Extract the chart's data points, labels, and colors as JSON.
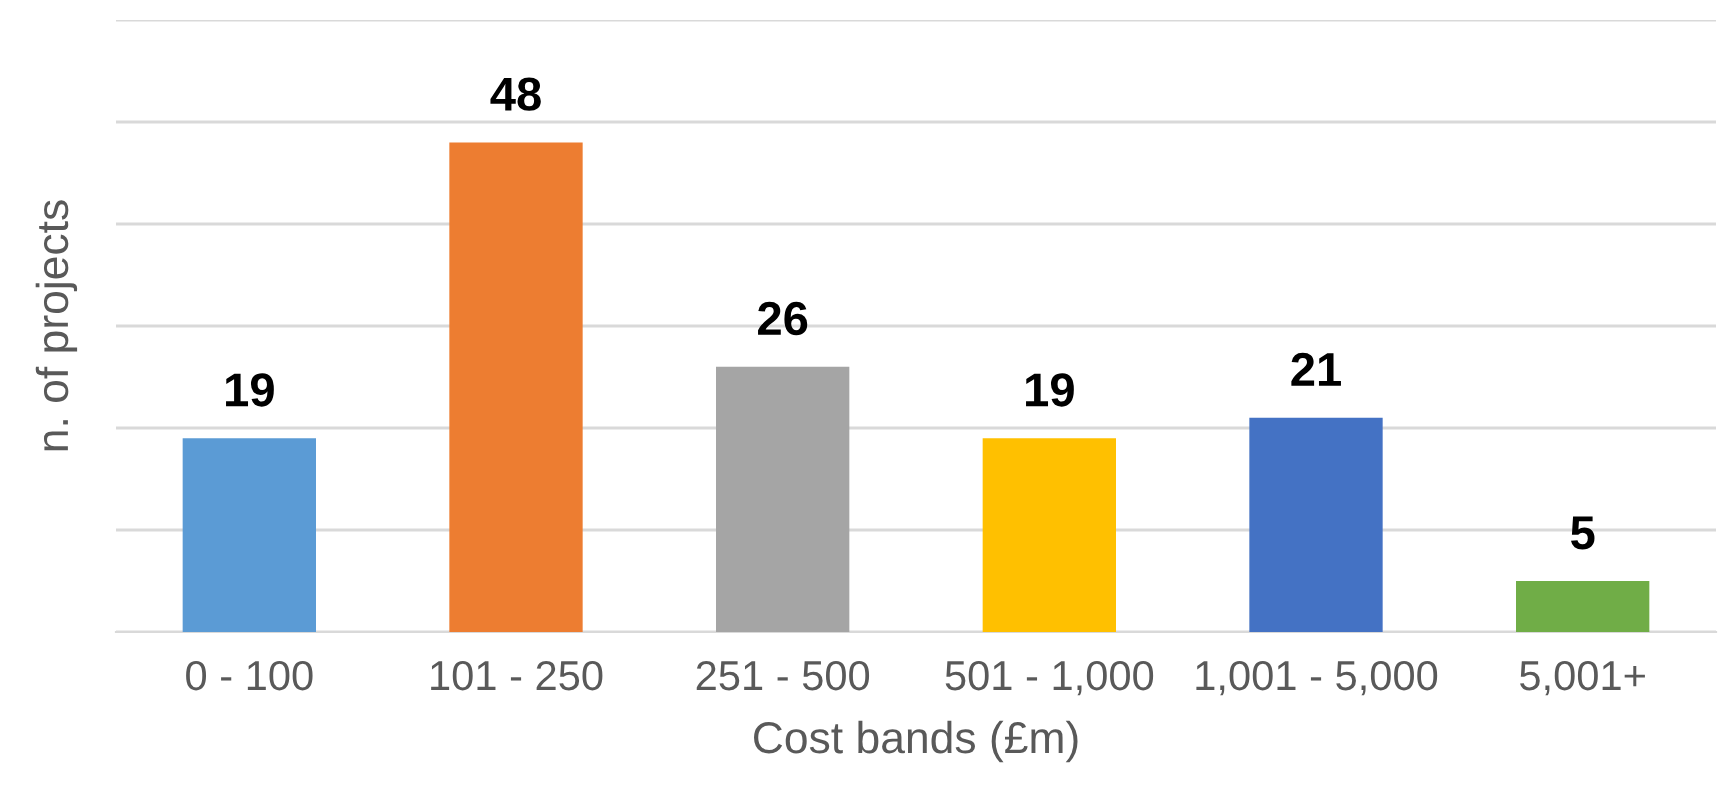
{
  "chart_data": {
    "type": "bar",
    "xlabel": "Cost bands (£m)",
    "ylabel": "n. of projects",
    "categories": [
      "0 - 100",
      "101 - 250",
      "251 - 500",
      "501 - 1,000",
      "1,001 - 5,000",
      "5,001+"
    ],
    "values": [
      19,
      48,
      26,
      19,
      21,
      5
    ],
    "colors": [
      "#5b9bd5",
      "#ed7d31",
      "#a5a5a5",
      "#ffc000",
      "#4472c4",
      "#70ad47"
    ],
    "ylim": [
      0,
      60
    ],
    "yticks": [
      {
        "value": 0,
        "label": null
      },
      {
        "value": 10,
        "label": null
      },
      {
        "value": 20,
        "label": null
      },
      {
        "value": 30,
        "label": null
      },
      {
        "value": 40,
        "label": null
      },
      {
        "value": 50,
        "label": null
      },
      {
        "value": 60,
        "label": null
      }
    ],
    "grid": "y",
    "tick_labels": "x",
    "data_labels": true
  }
}
